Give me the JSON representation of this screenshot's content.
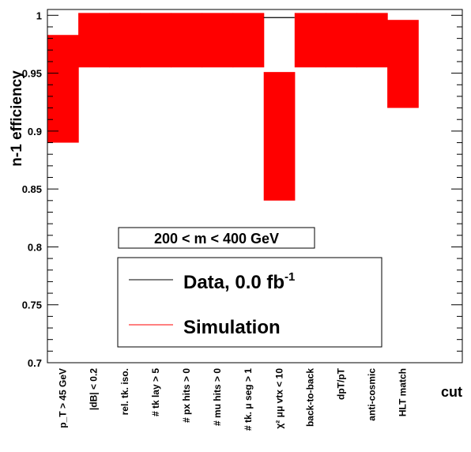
{
  "chart_data": {
    "type": "bar",
    "ylabel": "n-1 efficiency",
    "xlabel": "cut",
    "ylim": [
      0.7,
      1.005
    ],
    "yticks": [
      "0.7",
      "0.75",
      "0.8",
      "0.85",
      "0.9",
      "0.95",
      "1"
    ],
    "categories": [
      "p_T > 45 GeV",
      "|dB| < 0.2",
      "rel. tk. iso.",
      "# tk lay > 5",
      "# px hits > 0",
      "# mu hits > 0",
      "# tk. μ seg > 1",
      "χ² μμ vtx < 10",
      "back-to-back",
      "dpT/pT",
      "anti-cosmic",
      "HLT match"
    ],
    "series": [
      {
        "name": "Data, 0.0 fb-1",
        "color": "#000000",
        "values": [
          null,
          null,
          null,
          null,
          null,
          null,
          null,
          0.998,
          null,
          null,
          null,
          null
        ]
      },
      {
        "name": "Simulation",
        "color": "#ff0000",
        "bands": [
          [
            0.89,
            0.983
          ],
          [
            0.955,
            1.002
          ],
          [
            0.955,
            1.002
          ],
          [
            0.955,
            1.002
          ],
          [
            0.955,
            1.002
          ],
          [
            0.955,
            1.002
          ],
          [
            0.955,
            1.002
          ],
          [
            0.84,
            0.951
          ],
          [
            0.955,
            1.002
          ],
          [
            0.955,
            1.002
          ],
          [
            0.955,
            1.002
          ],
          [
            0.92,
            0.996
          ]
        ]
      }
    ],
    "mass_window_label": "200 < m < 400 GeV",
    "legend": {
      "data_label": "Data, 0.0 fb",
      "data_superscript": "-1",
      "sim_label": "Simulation"
    }
  }
}
